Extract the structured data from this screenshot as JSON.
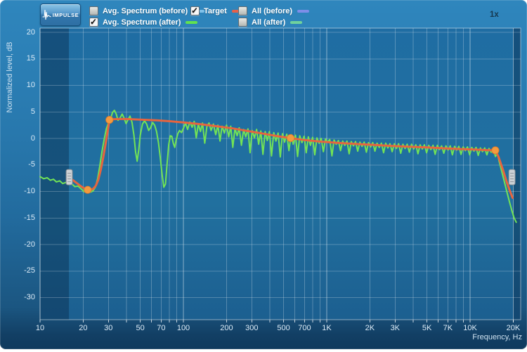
{
  "window": {
    "zoom_indicator": "1x"
  },
  "toolbar": {
    "impulse_button": "IMPULSE"
  },
  "legend": {
    "items": [
      {
        "id": "avg-spectrum-before",
        "label": "Avg. Spectrum (before)",
        "checked": false,
        "color": "#7fc0e8",
        "row": 1,
        "col": 1
      },
      {
        "id": "target",
        "label": "Target",
        "checked": true,
        "color": "#e4614a",
        "row": 1,
        "col": 2
      },
      {
        "id": "all-before",
        "label": "All (before)",
        "checked": false,
        "color": "#7e8ee8",
        "row": 1,
        "col": 3
      },
      {
        "id": "avg-spectrum-after",
        "label": "Avg. Spectrum (after)",
        "checked": true,
        "color": "#62e24e",
        "row": 2,
        "col": 1
      },
      {
        "id": "all-after",
        "label": "All (after)",
        "checked": false,
        "color": "#70d29c",
        "row": 2,
        "col": 3
      }
    ]
  },
  "chart_data": {
    "type": "line",
    "x_scale": "log",
    "xlabel": "Frequency, Hz",
    "ylabel": "Normalized level, dB",
    "x_range": [
      10,
      22600
    ],
    "y_ticks": [
      20,
      15,
      10,
      5,
      0,
      -5,
      -10,
      -15,
      -20,
      -25,
      -30
    ],
    "x_ticks": [
      {
        "v": 10,
        "label": "10"
      },
      {
        "v": 20,
        "label": "20"
      },
      {
        "v": 30,
        "label": "30"
      },
      {
        "v": 50,
        "label": "50"
      },
      {
        "v": 70,
        "label": "70"
      },
      {
        "v": 100,
        "label": "100"
      },
      {
        "v": 200,
        "label": "200"
      },
      {
        "v": 300,
        "label": "300"
      },
      {
        "v": 500,
        "label": "500"
      },
      {
        "v": 700,
        "label": "700"
      },
      {
        "v": 1000,
        "label": "1K"
      },
      {
        "v": 2000,
        "label": "2K"
      },
      {
        "v": 3000,
        "label": "3K"
      },
      {
        "v": 5000,
        "label": "5K"
      },
      {
        "v": 7000,
        "label": "7K"
      },
      {
        "v": 10000,
        "label": "10K"
      },
      {
        "v": 20000,
        "label": "20K"
      }
    ],
    "disabled_bands": [
      [
        10,
        15.9
      ],
      [
        20000,
        22600
      ]
    ],
    "range_handles": [
      {
        "f": 16,
        "db": -7.3
      },
      {
        "f": 19600,
        "db": -7.3
      }
    ],
    "control_points": {
      "color": "#f49a3e",
      "points": [
        [
          21.5,
          -9.7
        ],
        [
          30.5,
          3.5
        ],
        [
          560,
          0.05
        ],
        [
          15000,
          -2.25
        ]
      ]
    },
    "series": [
      {
        "name": "Target",
        "color": "#e7643e",
        "width": 3,
        "points": [
          [
            15.9,
            -7.3
          ],
          [
            17,
            -7.9
          ],
          [
            18,
            -8.4
          ],
          [
            19,
            -8.9
          ],
          [
            20,
            -9.3
          ],
          [
            21,
            -9.6
          ],
          [
            21.5,
            -9.7
          ],
          [
            22.5,
            -9.7
          ],
          [
            23.5,
            -9.5
          ],
          [
            24.5,
            -8.9
          ],
          [
            25.5,
            -7.8
          ],
          [
            26.5,
            -6.0
          ],
          [
            27.5,
            -3.8
          ],
          [
            28.5,
            -1.4
          ],
          [
            29.5,
            1.0
          ],
          [
            30.5,
            3.5
          ],
          [
            32,
            3.6
          ],
          [
            35,
            3.65
          ],
          [
            40,
            3.65
          ],
          [
            50,
            3.55
          ],
          [
            65,
            3.4
          ],
          [
            80,
            3.25
          ],
          [
            100,
            3.0
          ],
          [
            130,
            2.7
          ],
          [
            170,
            2.3
          ],
          [
            220,
            1.9
          ],
          [
            280,
            1.4
          ],
          [
            360,
            0.9
          ],
          [
            460,
            0.4
          ],
          [
            560,
            0.05
          ],
          [
            700,
            -0.3
          ],
          [
            900,
            -0.6
          ],
          [
            1200,
            -0.85
          ],
          [
            1600,
            -1.05
          ],
          [
            2100,
            -1.2
          ],
          [
            2800,
            -1.4
          ],
          [
            3700,
            -1.55
          ],
          [
            5000,
            -1.7
          ],
          [
            6500,
            -1.85
          ],
          [
            8500,
            -2.0
          ],
          [
            11000,
            -2.1
          ],
          [
            13000,
            -2.2
          ],
          [
            15000,
            -2.25
          ],
          [
            15800,
            -3.5
          ],
          [
            17000,
            -6.0
          ],
          [
            18000,
            -8.2
          ],
          [
            19000,
            -10.0
          ],
          [
            19800,
            -11.2
          ]
        ]
      },
      {
        "name": "Avg. Spectrum (after)",
        "color": "#72e356",
        "width": 2,
        "points": [
          [
            10,
            -7.2
          ],
          [
            10.6,
            -7.6
          ],
          [
            11.2,
            -7.4
          ],
          [
            11.8,
            -7.9
          ],
          [
            12.4,
            -7.7
          ],
          [
            13,
            -8.2
          ],
          [
            13.7,
            -8.0
          ],
          [
            14.4,
            -8.5
          ],
          [
            15.1,
            -8.3
          ],
          [
            15.9,
            -8.7
          ],
          [
            16.7,
            -8.6
          ],
          [
            17.5,
            -9.1
          ],
          [
            18.4,
            -9.0
          ],
          [
            19.3,
            -9.5
          ],
          [
            20.2,
            -10.0
          ],
          [
            21,
            -10.2
          ],
          [
            21.8,
            -9.9
          ],
          [
            22.6,
            -10.1
          ],
          [
            23.4,
            -9.9
          ],
          [
            24.3,
            -9.2
          ],
          [
            25.2,
            -7.6
          ],
          [
            26.1,
            -5.2
          ],
          [
            27,
            -2.6
          ],
          [
            28,
            -0.2
          ],
          [
            29,
            1.8
          ],
          [
            30,
            2.9
          ],
          [
            31,
            3.6
          ],
          [
            32,
            4.9
          ],
          [
            33,
            5.3
          ],
          [
            34,
            4.6
          ],
          [
            35,
            3.4
          ],
          [
            36.2,
            3.9
          ],
          [
            37.4,
            4.6
          ],
          [
            38.6,
            3.8
          ],
          [
            39.8,
            2.8
          ],
          [
            41,
            3.5
          ],
          [
            42.4,
            4.2
          ],
          [
            43.8,
            3.0
          ],
          [
            45.2,
            0.6
          ],
          [
            46.4,
            -2.6
          ],
          [
            47.6,
            -4.3
          ],
          [
            48.8,
            -2.2
          ],
          [
            50,
            0.6
          ],
          [
            51.8,
            2.7
          ],
          [
            53.6,
            3.3
          ],
          [
            55.4,
            2.7
          ],
          [
            57.2,
            1.5
          ],
          [
            59,
            2.0
          ],
          [
            61,
            3.0
          ],
          [
            63,
            2.5
          ],
          [
            65,
            1.3
          ],
          [
            67,
            -0.8
          ],
          [
            69,
            -3.6
          ],
          [
            71,
            -6.8
          ],
          [
            73,
            -9.2
          ],
          [
            75,
            -8.6
          ],
          [
            77,
            -4.8
          ],
          [
            79,
            -1.2
          ],
          [
            81,
            0.5
          ],
          [
            83,
            0.4
          ],
          [
            85,
            -0.9
          ],
          [
            87,
            -1.7
          ],
          [
            89,
            -0.3
          ],
          [
            91.5,
            0.9
          ],
          [
            94,
            1.5
          ],
          [
            97,
            1.1
          ],
          [
            100,
            1.9
          ],
          [
            103.5,
            2.9
          ],
          [
            107,
            1.7
          ],
          [
            111,
            3.1
          ],
          [
            115,
            2.1
          ],
          [
            119,
            3.2
          ],
          [
            123,
            0.1
          ],
          [
            127,
            2.7
          ],
          [
            131.5,
            1.3
          ],
          [
            136,
            2.9
          ],
          [
            141,
            -0.9
          ],
          [
            146,
            2.3
          ],
          [
            151,
            2.9
          ],
          [
            156,
            1.5
          ],
          [
            162,
            2.7
          ],
          [
            168,
            0.7
          ],
          [
            174,
            2.5
          ],
          [
            180,
            -0.5
          ],
          [
            186,
            2.3
          ],
          [
            193,
            1.0
          ],
          [
            200,
            2.5
          ],
          [
            207,
            0.3
          ],
          [
            214,
            2.3
          ],
          [
            221,
            -1.7
          ],
          [
            229,
            1.9
          ],
          [
            237,
            0.5
          ],
          [
            245,
            2.0
          ],
          [
            254,
            -1.3
          ],
          [
            263,
            1.7
          ],
          [
            272,
            0.3
          ],
          [
            282,
            1.8
          ],
          [
            292,
            -2.7
          ],
          [
            302,
            1.5
          ],
          [
            313,
            0.1
          ],
          [
            324,
            1.7
          ],
          [
            335,
            -1.1
          ],
          [
            347,
            1.4
          ],
          [
            359,
            -3.0
          ],
          [
            372,
            1.3
          ],
          [
            385,
            -0.4
          ],
          [
            398,
            1.3
          ],
          [
            412,
            -3.3
          ],
          [
            427,
            1.1
          ],
          [
            442,
            -0.5
          ],
          [
            458,
            1.0
          ],
          [
            474,
            -3.5
          ],
          [
            491,
            0.9
          ],
          [
            508,
            -0.7
          ],
          [
            526,
            0.8
          ],
          [
            545,
            -2.3
          ],
          [
            564,
            0.7
          ],
          [
            584,
            -1.1
          ],
          [
            605,
            0.6
          ],
          [
            626,
            -3.4
          ],
          [
            648,
            0.5
          ],
          [
            671,
            -0.8
          ],
          [
            695,
            0.4
          ],
          [
            719,
            -2.7
          ],
          [
            744,
            0.3
          ],
          [
            770,
            -1.3
          ],
          [
            797,
            0.2
          ],
          [
            825,
            -3.1
          ],
          [
            854,
            0.1
          ],
          [
            884,
            -0.9
          ],
          [
            915,
            0.0
          ],
          [
            947,
            -2.5
          ],
          [
            980,
            -0.1
          ],
          [
            1014,
            -0.7
          ],
          [
            1050,
            -0.2
          ],
          [
            1087,
            -3.3
          ],
          [
            1125,
            -0.3
          ],
          [
            1165,
            -1.1
          ],
          [
            1206,
            -0.4
          ],
          [
            1248,
            -2.3
          ],
          [
            1292,
            -0.5
          ],
          [
            1337,
            -1.3
          ],
          [
            1384,
            -0.5
          ],
          [
            1433,
            -2.9
          ],
          [
            1483,
            -0.6
          ],
          [
            1535,
            -1.4
          ],
          [
            1589,
            -0.6
          ],
          [
            1645,
            -2.4
          ],
          [
            1703,
            -0.7
          ],
          [
            1763,
            -1.5
          ],
          [
            1825,
            -0.7
          ],
          [
            1889,
            -2.6
          ],
          [
            1955,
            -0.8
          ],
          [
            2024,
            -1.6
          ],
          [
            2095,
            -0.8
          ],
          [
            2169,
            -2.4
          ],
          [
            2245,
            -0.9
          ],
          [
            2324,
            -1.7
          ],
          [
            2406,
            -0.9
          ],
          [
            2491,
            -2.7
          ],
          [
            2578,
            -0.9
          ],
          [
            2669,
            -1.8
          ],
          [
            2763,
            -1.0
          ],
          [
            2860,
            -2.5
          ],
          [
            2961,
            -1.0
          ],
          [
            3065,
            -1.9
          ],
          [
            3173,
            -1.0
          ],
          [
            3284,
            -2.8
          ],
          [
            3400,
            -1.1
          ],
          [
            3519,
            -1.9
          ],
          [
            3643,
            -1.1
          ],
          [
            3771,
            -2.6
          ],
          [
            3904,
            -1.1
          ],
          [
            4041,
            -2.0
          ],
          [
            4183,
            -1.2
          ],
          [
            4330,
            -2.9
          ],
          [
            4482,
            -1.2
          ],
          [
            4640,
            -2.0
          ],
          [
            4803,
            -1.2
          ],
          [
            4972,
            -2.7
          ],
          [
            5147,
            -1.3
          ],
          [
            5328,
            -2.1
          ],
          [
            5515,
            -1.3
          ],
          [
            5709,
            -3.0
          ],
          [
            5910,
            -1.3
          ],
          [
            6118,
            -2.1
          ],
          [
            6333,
            -1.4
          ],
          [
            6556,
            -2.8
          ],
          [
            6786,
            -1.4
          ],
          [
            7025,
            -2.2
          ],
          [
            7272,
            -1.4
          ],
          [
            7528,
            -3.1
          ],
          [
            7793,
            -1.5
          ],
          [
            8067,
            -2.2
          ],
          [
            8351,
            -1.5
          ],
          [
            8645,
            -3.0
          ],
          [
            8949,
            -1.6
          ],
          [
            9264,
            -2.3
          ],
          [
            9590,
            -1.6
          ],
          [
            9927,
            -3.1
          ],
          [
            10276,
            -1.7
          ],
          [
            10638,
            -2.4
          ],
          [
            11012,
            -1.7
          ],
          [
            11400,
            -3.2
          ],
          [
            11801,
            -1.8
          ],
          [
            12216,
            -2.5
          ],
          [
            12646,
            -1.8
          ],
          [
            13091,
            -3.1
          ],
          [
            13552,
            -1.9
          ],
          [
            14029,
            -2.6
          ],
          [
            14523,
            -2.0
          ],
          [
            15034,
            -3.4
          ],
          [
            15500,
            -2.8
          ],
          [
            15900,
            -4.2
          ],
          [
            16400,
            -5.6
          ],
          [
            16900,
            -7.0
          ],
          [
            17500,
            -8.6
          ],
          [
            18100,
            -10.2
          ],
          [
            18800,
            -11.9
          ],
          [
            19500,
            -13.5
          ],
          [
            20300,
            -15.0
          ],
          [
            21000,
            -15.8
          ]
        ]
      }
    ]
  }
}
